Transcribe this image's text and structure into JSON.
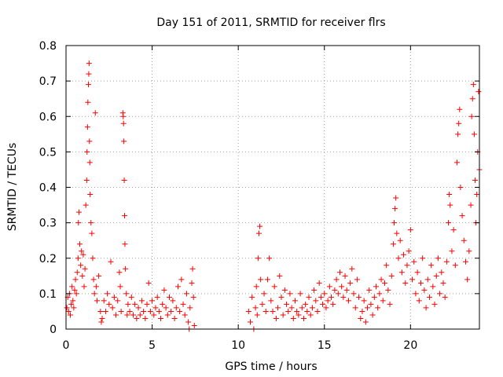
{
  "chart_data": {
    "type": "scatter",
    "title": "Day 151 of 2011, SRMTID for receiver flrs",
    "xlabel": "GPS time / hours",
    "ylabel": "SRMTID / TECUs",
    "xlim": [
      0,
      24
    ],
    "ylim": [
      0,
      0.8
    ],
    "xticks": [
      0,
      5,
      10,
      15,
      20
    ],
    "xtick_labels": [
      "0",
      "5",
      "10",
      "15",
      "20"
    ],
    "yticks": [
      0,
      0.1,
      0.2,
      0.3,
      0.4,
      0.5,
      0.6,
      0.7,
      0.8
    ],
    "ytick_labels": [
      "0",
      "0.1",
      "0.2",
      "0.3",
      "0.4",
      "0.5",
      "0.6",
      "0.7",
      "0.8"
    ],
    "grid": true,
    "marker": "plus",
    "color": "#ff0000",
    "series": [
      {
        "name": "flrs",
        "points": [
          [
            0.05,
            0.06
          ],
          [
            0.1,
            0.09
          ],
          [
            0.15,
            0.05
          ],
          [
            0.2,
            0.1
          ],
          [
            0.25,
            0.04
          ],
          [
            0.3,
            0.07
          ],
          [
            0.35,
            0.12
          ],
          [
            0.4,
            0.08
          ],
          [
            0.45,
            0.06
          ],
          [
            0.5,
            0.11
          ],
          [
            0.55,
            0.14
          ],
          [
            0.6,
            0.1
          ],
          [
            0.65,
            0.16
          ],
          [
            0.7,
            0.2
          ],
          [
            0.72,
            0.3
          ],
          [
            0.75,
            0.33
          ],
          [
            0.8,
            0.24
          ],
          [
            0.85,
            0.18
          ],
          [
            0.9,
            0.22
          ],
          [
            0.95,
            0.15
          ],
          [
            1.0,
            0.21
          ],
          [
            1.05,
            0.12
          ],
          [
            1.1,
            0.17
          ],
          [
            1.15,
            0.35
          ],
          [
            1.2,
            0.42
          ],
          [
            1.22,
            0.5
          ],
          [
            1.25,
            0.57
          ],
          [
            1.27,
            0.64
          ],
          [
            1.3,
            0.69
          ],
          [
            1.32,
            0.72
          ],
          [
            1.34,
            0.75
          ],
          [
            1.36,
            0.53
          ],
          [
            1.38,
            0.47
          ],
          [
            1.4,
            0.38
          ],
          [
            1.45,
            0.3
          ],
          [
            1.5,
            0.27
          ],
          [
            1.55,
            0.2
          ],
          [
            1.6,
            0.14
          ],
          [
            1.65,
            0.1
          ],
          [
            1.7,
            0.61
          ],
          [
            1.75,
            0.12
          ],
          [
            1.8,
            0.08
          ],
          [
            1.9,
            0.15
          ],
          [
            2.0,
            0.05
          ],
          [
            2.05,
            0.02
          ],
          [
            2.1,
            0.03
          ],
          [
            2.2,
            0.08
          ],
          [
            2.3,
            0.05
          ],
          [
            2.4,
            0.1
          ],
          [
            2.5,
            0.07
          ],
          [
            2.6,
            0.19
          ],
          [
            2.7,
            0.06
          ],
          [
            2.8,
            0.09
          ],
          [
            2.9,
            0.04
          ],
          [
            3.0,
            0.08
          ],
          [
            3.1,
            0.16
          ],
          [
            3.15,
            0.12
          ],
          [
            3.2,
            0.05
          ],
          [
            3.3,
            0.61
          ],
          [
            3.32,
            0.6
          ],
          [
            3.34,
            0.58
          ],
          [
            3.36,
            0.53
          ],
          [
            3.38,
            0.42
          ],
          [
            3.4,
            0.32
          ],
          [
            3.42,
            0.24
          ],
          [
            3.45,
            0.17
          ],
          [
            3.5,
            0.1
          ],
          [
            3.55,
            0.04
          ],
          [
            3.6,
            0.07
          ],
          [
            3.7,
            0.05
          ],
          [
            3.8,
            0.09
          ],
          [
            3.9,
            0.04
          ],
          [
            4.0,
            0.07
          ],
          [
            4.1,
            0.03
          ],
          [
            4.2,
            0.06
          ],
          [
            4.3,
            0.04
          ],
          [
            4.4,
            0.08
          ],
          [
            4.5,
            0.05
          ],
          [
            4.6,
            0.03
          ],
          [
            4.7,
            0.07
          ],
          [
            4.8,
            0.13
          ],
          [
            4.9,
            0.05
          ],
          [
            5.0,
            0.08
          ],
          [
            5.1,
            0.04
          ],
          [
            5.2,
            0.06
          ],
          [
            5.3,
            0.09
          ],
          [
            5.4,
            0.05
          ],
          [
            5.5,
            0.03
          ],
          [
            5.6,
            0.07
          ],
          [
            5.7,
            0.11
          ],
          [
            5.8,
            0.06
          ],
          [
            5.9,
            0.04
          ],
          [
            6.0,
            0.09
          ],
          [
            6.1,
            0.05
          ],
          [
            6.2,
            0.08
          ],
          [
            6.3,
            0.03
          ],
          [
            6.4,
            0.06
          ],
          [
            6.5,
            0.12
          ],
          [
            6.6,
            0.05
          ],
          [
            6.7,
            0.14
          ],
          [
            6.8,
            0.07
          ],
          [
            6.9,
            0.04
          ],
          [
            7.0,
            0.1
          ],
          [
            7.1,
            0.02
          ],
          [
            7.15,
            0.0
          ],
          [
            7.2,
            0.06
          ],
          [
            7.3,
            0.13
          ],
          [
            7.35,
            0.17
          ],
          [
            7.4,
            0.09
          ],
          [
            7.45,
            0.01
          ],
          [
            10.6,
            0.05
          ],
          [
            10.7,
            0.02
          ],
          [
            10.8,
            0.09
          ],
          [
            10.9,
            0.0
          ],
          [
            11.0,
            0.06
          ],
          [
            11.05,
            0.12
          ],
          [
            11.1,
            0.04
          ],
          [
            11.15,
            0.2
          ],
          [
            11.2,
            0.27
          ],
          [
            11.25,
            0.29
          ],
          [
            11.3,
            0.14
          ],
          [
            11.4,
            0.07
          ],
          [
            11.5,
            0.1
          ],
          [
            11.6,
            0.05
          ],
          [
            11.7,
            0.14
          ],
          [
            11.8,
            0.2
          ],
          [
            11.9,
            0.08
          ],
          [
            12.0,
            0.05
          ],
          [
            12.1,
            0.12
          ],
          [
            12.2,
            0.03
          ],
          [
            12.3,
            0.06
          ],
          [
            12.4,
            0.15
          ],
          [
            12.5,
            0.09
          ],
          [
            12.6,
            0.04
          ],
          [
            12.7,
            0.11
          ],
          [
            12.8,
            0.07
          ],
          [
            12.9,
            0.05
          ],
          [
            13.0,
            0.1
          ],
          [
            13.1,
            0.06
          ],
          [
            13.2,
            0.03
          ],
          [
            13.3,
            0.08
          ],
          [
            13.4,
            0.05
          ],
          [
            13.5,
            0.04
          ],
          [
            13.6,
            0.1
          ],
          [
            13.7,
            0.06
          ],
          [
            13.8,
            0.03
          ],
          [
            13.9,
            0.07
          ],
          [
            14.0,
            0.05
          ],
          [
            14.1,
            0.09
          ],
          [
            14.2,
            0.04
          ],
          [
            14.3,
            0.06
          ],
          [
            14.4,
            0.11
          ],
          [
            14.5,
            0.08
          ],
          [
            14.6,
            0.05
          ],
          [
            14.7,
            0.13
          ],
          [
            14.8,
            0.09
          ],
          [
            14.9,
            0.07
          ],
          [
            15.0,
            0.1
          ],
          [
            15.1,
            0.06
          ],
          [
            15.2,
            0.08
          ],
          [
            15.3,
            0.12
          ],
          [
            15.4,
            0.09
          ],
          [
            15.5,
            0.07
          ],
          [
            15.6,
            0.11
          ],
          [
            15.7,
            0.14
          ],
          [
            15.8,
            0.1
          ],
          [
            15.9,
            0.16
          ],
          [
            16.0,
            0.12
          ],
          [
            16.1,
            0.09
          ],
          [
            16.2,
            0.15
          ],
          [
            16.3,
            0.11
          ],
          [
            16.4,
            0.08
          ],
          [
            16.5,
            0.13
          ],
          [
            16.6,
            0.17
          ],
          [
            16.7,
            0.1
          ],
          [
            16.8,
            0.06
          ],
          [
            16.9,
            0.14
          ],
          [
            17.0,
            0.09
          ],
          [
            17.1,
            0.03
          ],
          [
            17.2,
            0.05
          ],
          [
            17.3,
            0.08
          ],
          [
            17.4,
            0.02
          ],
          [
            17.5,
            0.06
          ],
          [
            17.6,
            0.11
          ],
          [
            17.7,
            0.07
          ],
          [
            17.8,
            0.04
          ],
          [
            17.9,
            0.09
          ],
          [
            18.0,
            0.12
          ],
          [
            18.1,
            0.06
          ],
          [
            18.2,
            0.1
          ],
          [
            18.3,
            0.14
          ],
          [
            18.4,
            0.08
          ],
          [
            18.5,
            0.13
          ],
          [
            18.6,
            0.18
          ],
          [
            18.7,
            0.11
          ],
          [
            18.8,
            0.07
          ],
          [
            18.9,
            0.15
          ],
          [
            19.0,
            0.24
          ],
          [
            19.05,
            0.3
          ],
          [
            19.1,
            0.34
          ],
          [
            19.15,
            0.37
          ],
          [
            19.2,
            0.27
          ],
          [
            19.3,
            0.2
          ],
          [
            19.4,
            0.25
          ],
          [
            19.5,
            0.16
          ],
          [
            19.6,
            0.21
          ],
          [
            19.7,
            0.13
          ],
          [
            19.8,
            0.18
          ],
          [
            19.9,
            0.22
          ],
          [
            20.0,
            0.28
          ],
          [
            20.1,
            0.14
          ],
          [
            20.2,
            0.19
          ],
          [
            20.3,
            0.1
          ],
          [
            20.4,
            0.16
          ],
          [
            20.5,
            0.08
          ],
          [
            20.6,
            0.13
          ],
          [
            20.7,
            0.2
          ],
          [
            20.8,
            0.11
          ],
          [
            20.9,
            0.06
          ],
          [
            21.0,
            0.14
          ],
          [
            21.1,
            0.09
          ],
          [
            21.2,
            0.18
          ],
          [
            21.3,
            0.12
          ],
          [
            21.4,
            0.07
          ],
          [
            21.5,
            0.15
          ],
          [
            21.6,
            0.2
          ],
          [
            21.7,
            0.1
          ],
          [
            21.8,
            0.16
          ],
          [
            21.9,
            0.13
          ],
          [
            22.0,
            0.09
          ],
          [
            22.1,
            0.19
          ],
          [
            22.2,
            0.3
          ],
          [
            22.25,
            0.38
          ],
          [
            22.3,
            0.35
          ],
          [
            22.4,
            0.22
          ],
          [
            22.5,
            0.28
          ],
          [
            22.6,
            0.18
          ],
          [
            22.7,
            0.47
          ],
          [
            22.75,
            0.55
          ],
          [
            22.8,
            0.58
          ],
          [
            22.85,
            0.62
          ],
          [
            22.9,
            0.4
          ],
          [
            23.0,
            0.32
          ],
          [
            23.1,
            0.25
          ],
          [
            23.2,
            0.19
          ],
          [
            23.3,
            0.14
          ],
          [
            23.4,
            0.22
          ],
          [
            23.5,
            0.35
          ],
          [
            23.55,
            0.6
          ],
          [
            23.6,
            0.65
          ],
          [
            23.65,
            0.69
          ],
          [
            23.7,
            0.55
          ],
          [
            23.75,
            0.42
          ],
          [
            23.8,
            0.3
          ],
          [
            23.85,
            0.38
          ],
          [
            23.9,
            0.5
          ],
          [
            23.95,
            0.67
          ],
          [
            24.0,
            0.45
          ]
        ]
      }
    ]
  }
}
